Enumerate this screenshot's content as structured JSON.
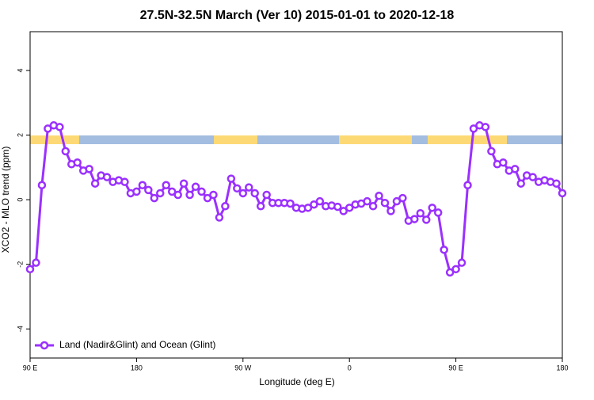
{
  "chart_data": {
    "type": "line",
    "title": "27.5N-32.5N March (Ver 10)   2015-01-01 to 2020-12-18",
    "xlabel": "Longitude (deg E)",
    "ylabel": "XCO2 - MLO trend (ppm)",
    "x": [
      90,
      95,
      100,
      105,
      110,
      115,
      120,
      125,
      130,
      135,
      140,
      145,
      150,
      155,
      160,
      165,
      170,
      175,
      180,
      185,
      190,
      195,
      200,
      205,
      210,
      215,
      220,
      225,
      230,
      235,
      240,
      245,
      250,
      255,
      260,
      265,
      270,
      275,
      280,
      285,
      290,
      295,
      300,
      305,
      310,
      315,
      320,
      325,
      330,
      335,
      340,
      345,
      350,
      355,
      360,
      365,
      370,
      375,
      380,
      385,
      390,
      395,
      400,
      405,
      410,
      415,
      420,
      425,
      430,
      435,
      440,
      445,
      450,
      455,
      460,
      465,
      470,
      475,
      480,
      485,
      490,
      495,
      500,
      505,
      510,
      515,
      520,
      525,
      530,
      535,
      540
    ],
    "series": [
      {
        "name": "Land (Nadir&Glint) and Ocean (Glint)",
        "color": "#9b30ff",
        "values": [
          -2.15,
          -1.95,
          0.45,
          2.2,
          2.3,
          2.25,
          1.5,
          1.1,
          1.15,
          0.9,
          0.95,
          0.5,
          0.75,
          0.7,
          0.55,
          0.6,
          0.55,
          0.2,
          0.25,
          0.45,
          0.3,
          0.05,
          0.2,
          0.45,
          0.25,
          0.15,
          0.5,
          0.15,
          0.4,
          0.25,
          0.05,
          0.15,
          -0.55,
          -0.2,
          0.65,
          0.35,
          0.2,
          0.38,
          0.2,
          -0.2,
          0.15,
          -0.1,
          -0.1,
          -0.1,
          -0.12,
          -0.25,
          -0.28,
          -0.25,
          -0.15,
          -0.05,
          -0.2,
          -0.18,
          -0.22,
          -0.35,
          -0.25,
          -0.15,
          -0.12,
          -0.05,
          -0.2,
          0.12,
          -0.1,
          -0.35,
          -0.05,
          0.05,
          -0.65,
          -0.6,
          -0.42,
          -0.62,
          -0.25,
          -0.4,
          -1.55,
          -2.25,
          -2.15,
          -1.95,
          0.45,
          2.2,
          2.3,
          2.25,
          1.5,
          1.1,
          1.15,
          0.9,
          0.95,
          0.5,
          0.75,
          0.7,
          0.55,
          0.6,
          0.55,
          0.5,
          0.2
        ]
      }
    ],
    "xlim": [
      90,
      540
    ],
    "xticks": [
      {
        "value": 90,
        "label": "90 E"
      },
      180,
      {
        "value": 270,
        "label": "90 W"
      },
      {
        "value": 360,
        "label": "0"
      },
      {
        "value": 450,
        "label": "90 E"
      },
      {
        "value": 540,
        "label": "180"
      }
    ],
    "ylim": [
      -4.9,
      5.2
    ],
    "yticks": [
      -4,
      -2,
      0,
      2,
      4
    ],
    "legend": "bottom left"
  }
}
